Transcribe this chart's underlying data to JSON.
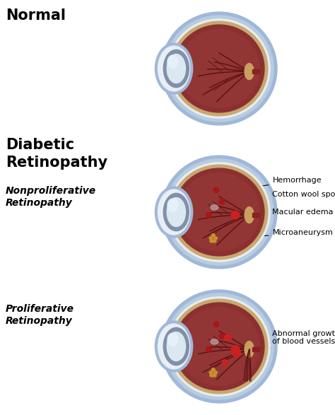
{
  "background_color": "#ffffff",
  "title_normal": "Normal",
  "title_diabetic": "Diabetic\nRetinopathy",
  "label_nonprolif": "Nonproliferative\nRetinopathy",
  "label_prolif": "Proliferative\nRetinopathy",
  "eye_blue_outer": "#a0b8d8",
  "eye_blue_mid": "#b8cce0",
  "eye_white_sclera": "#e8ecf0",
  "eye_choroid_tan": "#c8a870",
  "eye_retina_dark": "#8B3030",
  "eye_retina_mid": "#923535",
  "eye_lens_white": "#dce8f0",
  "eye_lens_blue": "#8090a8",
  "eye_lens_highlight": "#d0e0f0",
  "eye_cornea_white": "#e8eef4",
  "vessel_color": "#5a1010",
  "spot_red_dark": "#aa1515",
  "spot_red_bright": "#cc2020",
  "spot_yellow": "#c89030",
  "optic_disc_color": "#c8a060",
  "optic_nerve_red": "#8B2020"
}
